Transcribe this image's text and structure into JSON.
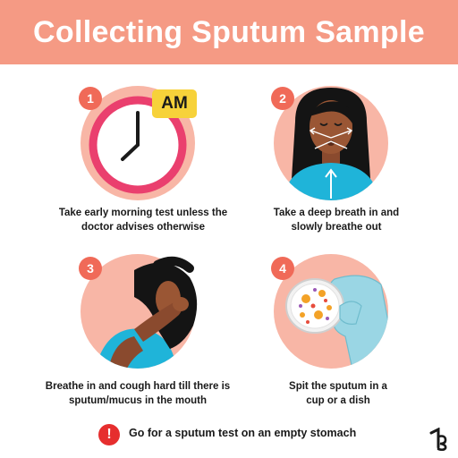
{
  "header": {
    "title": "Collecting Sputum Sample"
  },
  "steps": [
    {
      "number": "1",
      "badge_text": "AM",
      "caption_lines": [
        "Take early morning test unless the",
        "doctor advises otherwise"
      ],
      "icon": "alarm-clock-icon"
    },
    {
      "number": "2",
      "caption_lines": [
        "Take a deep breath in and",
        "slowly breathe out"
      ],
      "icon": "breathing-woman-icon"
    },
    {
      "number": "3",
      "caption_lines": [
        "Breathe in and cough hard till there is",
        "sputum/mucus in the mouth"
      ],
      "icon": "coughing-woman-icon"
    },
    {
      "number": "4",
      "caption_lines": [
        "Spit the sputum in a",
        "cup or a dish"
      ],
      "icon": "petri-dish-icon"
    }
  ],
  "tip": {
    "icon_text": "!",
    "text": "Go for a sputum test on an empty stomach",
    "icon": "exclamation-icon"
  },
  "brand": {
    "logo": "tata-1mg-logo-icon"
  },
  "colors": {
    "header": "#f59a84",
    "circle": "#f8b6a6",
    "badge": "#f06a58",
    "clock_ring": "#ea3f6e",
    "am_label": "#f7d23a",
    "shirt": "#1fb4d9",
    "alert": "#e62e2e"
  }
}
